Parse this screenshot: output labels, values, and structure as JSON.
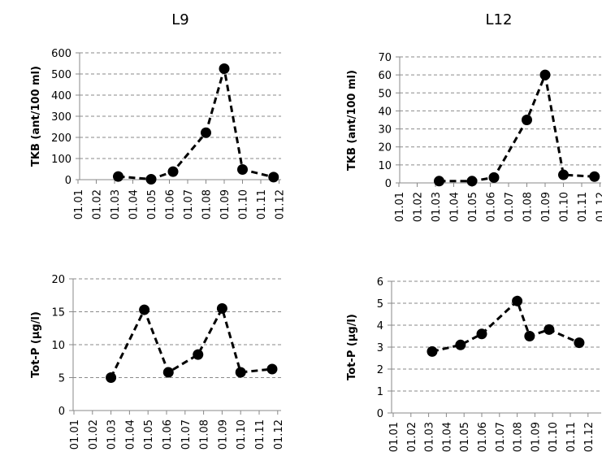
{
  "chart_data": [
    {
      "type": "line",
      "title": "L9",
      "ylabel": "TKB (ant/100 ml)",
      "xlabel": "",
      "categories": [
        "01.01",
        "01.02",
        "01.03",
        "01.04",
        "01.05",
        "01.06",
        "01.07",
        "01.08",
        "01.09",
        "01.10",
        "01.11",
        "01.12"
      ],
      "ylim": [
        0,
        600
      ],
      "yticks": [
        0,
        100,
        200,
        300,
        400,
        500,
        600
      ],
      "series": [
        {
          "x": [
            2.2,
            4.0,
            5.2,
            7.0,
            8.0,
            9.0,
            10.7
          ],
          "values": [
            15,
            2,
            38,
            222,
            525,
            48,
            12
          ]
        }
      ],
      "grid": true
    },
    {
      "type": "line",
      "title": "L12",
      "ylabel": "TKB (ant/100 ml)",
      "xlabel": "",
      "categories": [
        "01.01",
        "01.02",
        "01.03",
        "01.04",
        "01.05",
        "01.06",
        "01.07",
        "01.08",
        "01.09",
        "01.10",
        "01.11",
        "01.12"
      ],
      "ylim": [
        0,
        70
      ],
      "yticks": [
        0,
        10,
        20,
        30,
        40,
        50,
        60,
        70
      ],
      "series": [
        {
          "x": [
            2.2,
            4.0,
            5.2,
            7.0,
            8.0,
            9.0,
            10.7
          ],
          "values": [
            1,
            1,
            3,
            35,
            60,
            4.5,
            3.5
          ]
        }
      ],
      "grid": true
    },
    {
      "type": "line",
      "title": "",
      "ylabel": "Tot-P (µg/l)",
      "xlabel": "",
      "categories": [
        "01.01",
        "01.02",
        "01.03",
        "01.04",
        "01.05",
        "01.06",
        "01.07",
        "01.08",
        "01.09",
        "01.10",
        "01.11",
        "01.12"
      ],
      "ylim": [
        0,
        20
      ],
      "yticks": [
        0,
        5,
        10,
        15,
        20
      ],
      "series": [
        {
          "x": [
            2.0,
            3.8,
            5.1,
            6.7,
            8.0,
            9.0,
            10.7
          ],
          "values": [
            5,
            15.3,
            5.8,
            8.5,
            15.5,
            5.8,
            6.3
          ]
        }
      ],
      "grid": true
    },
    {
      "type": "line",
      "title": "",
      "ylabel": "Tot-P (µg/l)",
      "xlabel": "",
      "categories": [
        "01.01",
        "01.02",
        "01.03",
        "01.04",
        "01.05",
        "01.06",
        "01.07",
        "01.08",
        "01.09",
        "01.10",
        "01.11",
        "01.12"
      ],
      "ylim": [
        0,
        6
      ],
      "yticks": [
        0,
        1,
        2,
        3,
        4,
        5,
        6
      ],
      "series": [
        {
          "x": [
            2.2,
            3.8,
            5.0,
            7.0,
            7.7,
            8.8,
            10.5
          ],
          "values": [
            2.8,
            3.1,
            3.6,
            5.1,
            3.5,
            3.8,
            3.2
          ]
        }
      ],
      "grid": true
    }
  ]
}
